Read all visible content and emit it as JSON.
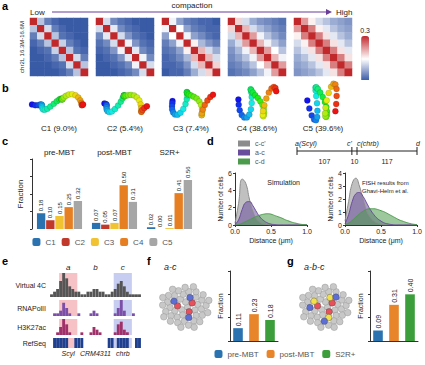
{
  "panel_labels": [
    "a",
    "b",
    "c",
    "d",
    "e",
    "f",
    "g"
  ],
  "diagrams": {
    "structures": [
      "C1 (9.0%)",
      "C2 (5.4%)",
      "C3 (7.4%)",
      "C4 (38.6%)",
      "C5 (39.6%)"
    ],
    "schematic": {
      "points": [
        "a(Scyl)",
        "c'",
        "c(chrb)",
        "d"
      ],
      "gaps": [
        107,
        10,
        117
      ]
    }
  },
  "chart_data": [
    {
      "type": "heatmap",
      "ylabel": "chr2L 16.3M-16.6M",
      "annotations": [
        "Low",
        "compaction",
        "High"
      ],
      "colorbar": {
        "range": [
          0,
          0.3
        ],
        "ticks": [
          0,
          0.3
        ]
      },
      "tick_labels": false,
      "maps": [
        [
          [
            0.3,
            0.1,
            0.04,
            0.02,
            0.01,
            0.01,
            0.01,
            0.01
          ],
          [
            0.1,
            0.3,
            0.12,
            0.04,
            0.02,
            0.01,
            0.01,
            0.01
          ],
          [
            0.04,
            0.12,
            0.3,
            0.1,
            0.03,
            0.02,
            0.01,
            0.01
          ],
          [
            0.02,
            0.04,
            0.1,
            0.3,
            0.11,
            0.04,
            0.02,
            0.01
          ],
          [
            0.01,
            0.02,
            0.03,
            0.11,
            0.3,
            0.1,
            0.03,
            0.02
          ],
          [
            0.01,
            0.01,
            0.02,
            0.04,
            0.1,
            0.3,
            0.12,
            0.04
          ],
          [
            0.01,
            0.01,
            0.01,
            0.02,
            0.03,
            0.12,
            0.3,
            0.1
          ],
          [
            0.01,
            0.01,
            0.01,
            0.01,
            0.02,
            0.04,
            0.1,
            0.3
          ]
        ],
        [
          [
            0.3,
            0.12,
            0.05,
            0.03,
            0.02,
            0.01,
            0.01,
            0.01
          ],
          [
            0.12,
            0.3,
            0.13,
            0.05,
            0.03,
            0.02,
            0.01,
            0.01
          ],
          [
            0.05,
            0.13,
            0.3,
            0.12,
            0.06,
            0.03,
            0.02,
            0.01
          ],
          [
            0.03,
            0.05,
            0.12,
            0.3,
            0.14,
            0.06,
            0.03,
            0.02
          ],
          [
            0.02,
            0.03,
            0.06,
            0.14,
            0.3,
            0.13,
            0.05,
            0.03
          ],
          [
            0.01,
            0.02,
            0.03,
            0.06,
            0.13,
            0.3,
            0.14,
            0.05
          ],
          [
            0.01,
            0.01,
            0.02,
            0.03,
            0.05,
            0.14,
            0.3,
            0.12
          ],
          [
            0.01,
            0.01,
            0.01,
            0.02,
            0.03,
            0.05,
            0.12,
            0.3
          ]
        ],
        [
          [
            0.3,
            0.14,
            0.07,
            0.04,
            0.03,
            0.02,
            0.02,
            0.01
          ],
          [
            0.14,
            0.3,
            0.15,
            0.07,
            0.04,
            0.03,
            0.02,
            0.02
          ],
          [
            0.07,
            0.15,
            0.3,
            0.14,
            0.07,
            0.05,
            0.03,
            0.02
          ],
          [
            0.04,
            0.07,
            0.14,
            0.3,
            0.16,
            0.09,
            0.06,
            0.04
          ],
          [
            0.03,
            0.04,
            0.07,
            0.16,
            0.3,
            0.2,
            0.12,
            0.08
          ],
          [
            0.02,
            0.03,
            0.05,
            0.09,
            0.2,
            0.3,
            0.2,
            0.12
          ],
          [
            0.02,
            0.02,
            0.03,
            0.06,
            0.12,
            0.2,
            0.3,
            0.18
          ],
          [
            0.01,
            0.02,
            0.02,
            0.04,
            0.08,
            0.12,
            0.18,
            0.3
          ]
        ],
        [
          [
            0.3,
            0.18,
            0.12,
            0.08,
            0.06,
            0.05,
            0.04,
            0.03
          ],
          [
            0.18,
            0.3,
            0.2,
            0.12,
            0.09,
            0.07,
            0.05,
            0.04
          ],
          [
            0.12,
            0.2,
            0.3,
            0.22,
            0.14,
            0.1,
            0.07,
            0.05
          ],
          [
            0.08,
            0.12,
            0.22,
            0.3,
            0.2,
            0.14,
            0.1,
            0.07
          ],
          [
            0.06,
            0.09,
            0.14,
            0.2,
            0.3,
            0.22,
            0.15,
            0.1
          ],
          [
            0.05,
            0.07,
            0.1,
            0.14,
            0.22,
            0.3,
            0.2,
            0.14
          ],
          [
            0.04,
            0.05,
            0.07,
            0.1,
            0.15,
            0.2,
            0.3,
            0.22
          ],
          [
            0.03,
            0.04,
            0.05,
            0.07,
            0.1,
            0.14,
            0.22,
            0.3
          ]
        ],
        [
          [
            0.3,
            0.22,
            0.16,
            0.12,
            0.1,
            0.08,
            0.07,
            0.06
          ],
          [
            0.22,
            0.3,
            0.24,
            0.16,
            0.13,
            0.1,
            0.08,
            0.07
          ],
          [
            0.16,
            0.24,
            0.3,
            0.24,
            0.17,
            0.13,
            0.1,
            0.08
          ],
          [
            0.12,
            0.16,
            0.24,
            0.3,
            0.24,
            0.17,
            0.13,
            0.1
          ],
          [
            0.1,
            0.13,
            0.17,
            0.24,
            0.3,
            0.24,
            0.17,
            0.13
          ],
          [
            0.08,
            0.1,
            0.13,
            0.17,
            0.24,
            0.3,
            0.24,
            0.17
          ],
          [
            0.07,
            0.08,
            0.1,
            0.13,
            0.17,
            0.24,
            0.3,
            0.24
          ],
          [
            0.06,
            0.07,
            0.08,
            0.1,
            0.13,
            0.17,
            0.24,
            0.3
          ]
        ]
      ]
    },
    {
      "type": "bar",
      "ylabel": "Fraction",
      "categories": [
        "pre-MBT",
        "post-MBT",
        "S2R+"
      ],
      "series": [
        {
          "name": "C1",
          "color": "#2a73b0",
          "values": [
            0.18,
            0.07,
            0.02
          ],
          "value_labels": [
            "0.18",
            "0.07",
            "0.02"
          ]
        },
        {
          "name": "C2",
          "color": "#c0392b",
          "values": [
            0.1,
            0.05,
            0.0
          ],
          "value_labels": [
            "0.10",
            "0.05",
            "0.00"
          ]
        },
        {
          "name": "C3",
          "color": "#f1c232",
          "values": [
            0.15,
            0.07,
            0.01
          ],
          "value_labels": [
            "0.15",
            "0.07",
            "0.01"
          ]
        },
        {
          "name": "C4",
          "color": "#e67e22",
          "values": [
            0.25,
            0.5,
            0.41
          ],
          "value_labels": [
            "0.25",
            "0.50",
            "0.41"
          ]
        },
        {
          "name": "C5",
          "color": "#a6a6a6",
          "values": [
            0.32,
            0.31,
            0.56
          ],
          "value_labels": [
            "0.32",
            "0.31",
            "0.56"
          ]
        }
      ],
      "ylim": [
        0,
        0.8
      ],
      "yticks": [
        0,
        0.2,
        0.4,
        0.6,
        0.8
      ],
      "tick_labels": "x",
      "data_labels": true,
      "legend": "bottom"
    },
    {
      "type": "area",
      "title": "Simulation",
      "xlabel": "Distance (μm)",
      "ylabel": "Number of cells",
      "x": [
        0,
        0.05,
        0.1,
        0.15,
        0.2,
        0.25,
        0.3,
        0.35,
        0.4,
        0.45,
        0.5,
        0.55,
        0.6,
        0.65,
        0.7,
        0.75,
        0.8,
        0.85,
        0.9,
        0.95,
        1
      ],
      "series": [
        {
          "name": "c-c'",
          "color": "#8c8c8c",
          "values": [
            0.2,
            2.5,
            5.3,
            4.8,
            3.0,
            1.5,
            0.7,
            0.3,
            0.1,
            0.05,
            0,
            0,
            0,
            0,
            0,
            0,
            0,
            0,
            0,
            0,
            0
          ]
        },
        {
          "name": "a-c",
          "color": "#6a4c9c",
          "values": [
            0.05,
            0.6,
            1.8,
            2.6,
            2.7,
            2.2,
            1.5,
            0.9,
            0.5,
            0.25,
            0.1,
            0.05,
            0,
            0,
            0,
            0,
            0,
            0,
            0,
            0,
            0
          ]
        },
        {
          "name": "c-d",
          "color": "#4c9a4c",
          "values": [
            0,
            0.05,
            0.2,
            0.4,
            0.6,
            0.8,
            1.0,
            1.15,
            1.25,
            1.3,
            1.25,
            1.1,
            0.95,
            0.8,
            0.6,
            0.45,
            0.3,
            0.2,
            0.1,
            0.05,
            0.02
          ]
        }
      ],
      "xlim": [
        0,
        1
      ],
      "xticks": [
        {
          "value": 0,
          "label": "0.0"
        },
        {
          "value": 0.5,
          "label": "0.5"
        },
        {
          "value": 1,
          "label": "1.0"
        }
      ],
      "ylim": [
        0,
        6
      ],
      "yticks": [
        0,
        2,
        4,
        6
      ],
      "legend": "top-left"
    },
    {
      "type": "area",
      "title": "FISH results from Ghavi-Helm et al.",
      "xlabel": "Distance (μm)",
      "ylabel": "Number of cells",
      "x": [
        0,
        0.05,
        0.1,
        0.15,
        0.2,
        0.25,
        0.3,
        0.35,
        0.4,
        0.45,
        0.5,
        0.55,
        0.6,
        0.65,
        0.7,
        0.75,
        0.8,
        0.85,
        0.9,
        0.95,
        1
      ],
      "series": [
        {
          "name": "c-c'",
          "color": "#8c8c8c",
          "values": [
            0.3,
            1.8,
            3.2,
            3.6,
            3.0,
            2.0,
            1.1,
            0.6,
            0.3,
            0.15,
            0.05,
            0,
            0,
            0,
            0,
            0,
            0,
            0,
            0,
            0,
            0
          ]
        },
        {
          "name": "a-c",
          "color": "#6a4c9c",
          "values": [
            0.1,
            0.8,
            1.8,
            2.4,
            2.5,
            2.2,
            1.7,
            1.2,
            0.8,
            0.5,
            0.3,
            0.15,
            0.08,
            0.03,
            0,
            0,
            0,
            0,
            0,
            0,
            0
          ]
        },
        {
          "name": "c-d",
          "color": "#4c9a4c",
          "values": [
            0.02,
            0.15,
            0.35,
            0.6,
            0.85,
            1.05,
            1.2,
            1.25,
            1.25,
            1.2,
            1.1,
            1.0,
            0.85,
            0.7,
            0.55,
            0.4,
            0.3,
            0.2,
            0.12,
            0.06,
            0.03
          ]
        }
      ],
      "xlim": [
        0,
        1
      ],
      "xticks": [
        {
          "value": 0,
          "label": "0.0"
        },
        {
          "value": 0.5,
          "label": "0.5"
        },
        {
          "value": 1,
          "label": "1.0"
        }
      ],
      "ylim": [
        0,
        4
      ],
      "yticks": [
        0,
        1,
        2,
        3,
        4
      ]
    },
    {
      "type": "tracks",
      "tracks": [
        {
          "name": "Virtual 4C",
          "color": "#555555",
          "values": [
            1,
            2,
            3,
            6,
            9,
            7,
            4,
            3,
            2,
            2,
            1,
            1,
            2,
            2,
            3,
            3,
            2,
            2,
            1,
            1,
            2,
            3,
            5,
            6,
            4,
            2,
            1,
            1,
            1,
            1
          ]
        },
        {
          "name": "RNAPolII",
          "color": "#7b4fa8",
          "values": [
            0,
            1,
            1,
            2,
            5,
            3,
            1,
            0,
            0,
            1,
            0,
            0,
            0,
            1,
            2,
            1,
            0,
            0,
            0,
            0,
            0,
            1,
            3,
            6,
            2,
            0,
            0,
            1,
            0,
            0
          ]
        },
        {
          "name": "H3K27ac",
          "color": "#a0306a",
          "values": [
            0,
            0,
            1,
            3,
            6,
            4,
            1,
            0,
            0,
            0,
            1,
            0,
            0,
            1,
            3,
            2,
            1,
            0,
            0,
            0,
            0,
            1,
            4,
            5,
            2,
            1,
            0,
            0,
            0,
            0
          ]
        },
        {
          "name": "RefSeq",
          "color": "#1f3f8f",
          "values": [
            0,
            1,
            1,
            1,
            1,
            1,
            0,
            0,
            1,
            1,
            1,
            0,
            0,
            0,
            0,
            0,
            0,
            0,
            0,
            1,
            1,
            0,
            1,
            1,
            1,
            1,
            0,
            0,
            1,
            1
          ]
        }
      ],
      "regions": [
        {
          "label": "a",
          "name": "Scyl",
          "color": "#e8505b",
          "start": 3,
          "end": 6
        },
        {
          "label": "b",
          "name": "CRM4311",
          "color": "#f2e04a",
          "start": 14,
          "end": 16
        },
        {
          "label": "c",
          "name": "chrb",
          "color": "#5d6fd6",
          "start": 22,
          "end": 25
        }
      ]
    },
    {
      "type": "bar",
      "title": "a-c",
      "ylabel": "Fraction",
      "categories": [
        "pre-MBT",
        "post-MBT",
        "S2R+"
      ],
      "values": [
        0.11,
        0.23,
        0.18
      ],
      "value_labels": [
        "0.11",
        "0.23",
        "0.18"
      ],
      "colors": [
        "#2a73b0",
        "#e8842a",
        "#3b9e3b"
      ],
      "ylim": [
        0,
        0.6
      ],
      "yticks": [
        0,
        0.2,
        0.4,
        0.6
      ],
      "tick_labels": false,
      "data_labels": true,
      "legend": "bottom"
    },
    {
      "type": "bar",
      "title": "a-b-c",
      "ylabel": "Fraction",
      "categories": [
        "pre-MBT",
        "post-MBT",
        "S2R+"
      ],
      "values": [
        0.09,
        0.31,
        0.4
      ],
      "value_labels": [
        "0.09",
        "0.31",
        "0.40"
      ],
      "colors": [
        "#2a73b0",
        "#e8842a",
        "#3b9e3b"
      ],
      "ylim": [
        0,
        0.6
      ],
      "yticks": [
        0,
        0.2,
        0.4,
        0.6
      ],
      "tick_labels": false,
      "data_labels": true,
      "legend": "bottom"
    }
  ]
}
